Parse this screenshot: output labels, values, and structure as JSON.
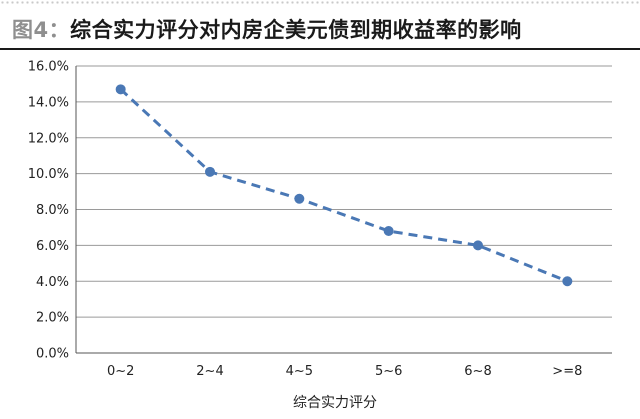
{
  "header": {
    "figure_label": "图4：",
    "title": "综合实力评分对内房企美元债到期收益率的影响"
  },
  "chart_data": {
    "type": "line",
    "title": "图4：综合实力评分对内房企美元债到期收益率的影响",
    "xlabel": "综合实力评分",
    "ylabel": "",
    "categories": [
      "0~2",
      "2~4",
      "4~5",
      "5~6",
      "6~8",
      ">=8"
    ],
    "series": [
      {
        "values": [
          14.7,
          10.1,
          8.6,
          6.8,
          6.0,
          4.0
        ]
      }
    ],
    "ylim": [
      0,
      16
    ],
    "yticks": [
      "0.0%",
      "2.0%",
      "4.0%",
      "6.0%",
      "8.0%",
      "10.0%",
      "12.0%",
      "14.0%",
      "16.0%"
    ],
    "grid": true,
    "line_style": "dashed",
    "color": "#4a78b5"
  }
}
